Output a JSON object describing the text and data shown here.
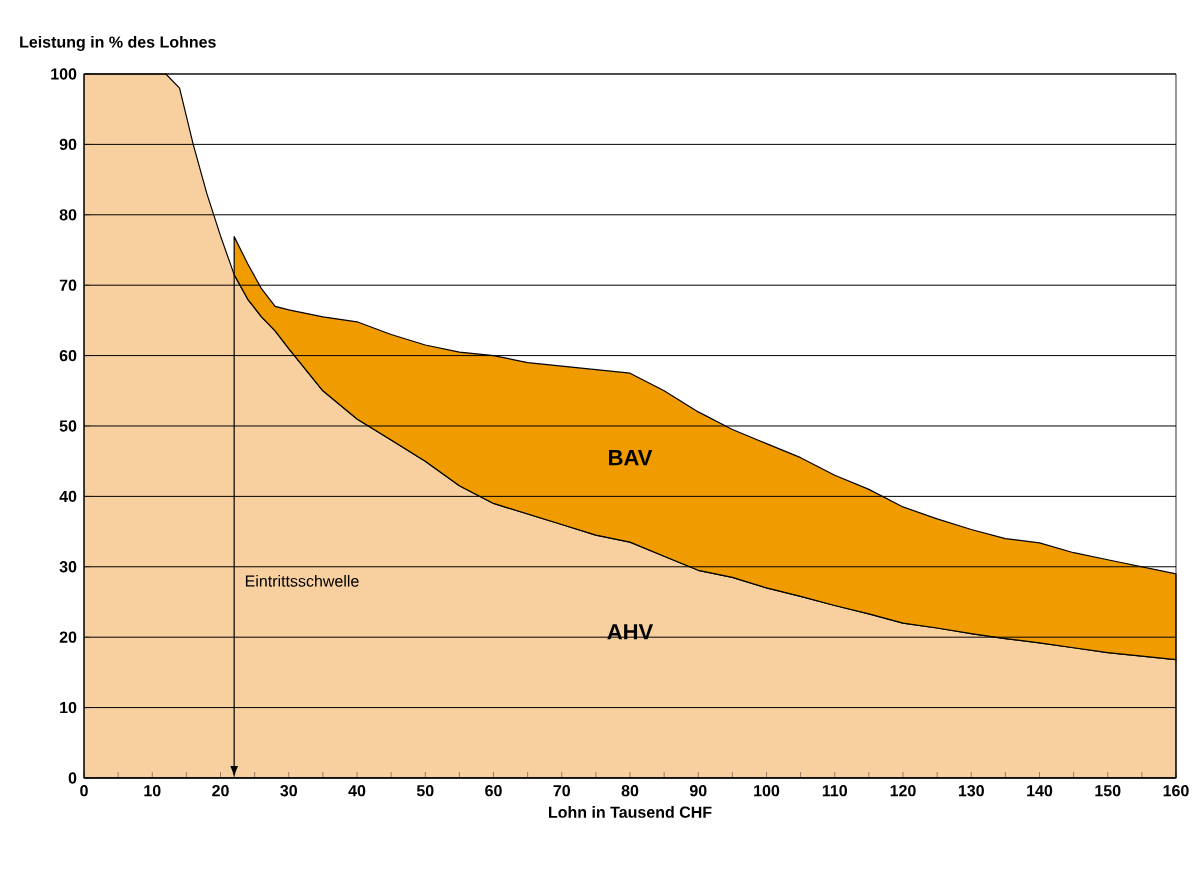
{
  "chart_data": {
    "type": "area",
    "stacked": true,
    "ylabel": "Leistung in % des Lohnes",
    "xlabel": "Lohn in Tausend CHF",
    "x": [
      0,
      10,
      12,
      14,
      16,
      18,
      20,
      22,
      24,
      26,
      28,
      30,
      35,
      40,
      45,
      50,
      55,
      60,
      65,
      70,
      75,
      80,
      85,
      90,
      95,
      100,
      105,
      110,
      115,
      120,
      125,
      130,
      135,
      140,
      145,
      150,
      155,
      160
    ],
    "series": [
      {
        "name": "AHV",
        "color": "#f8d0a0",
        "values": [
          100,
          100,
          100,
          98,
          90,
          83,
          77,
          71.5,
          68,
          65.5,
          63.5,
          61,
          55,
          51,
          48,
          45,
          41.5,
          39,
          37.5,
          36,
          34.5,
          33.5,
          31.5,
          29.5,
          28.5,
          27,
          25.8,
          24.5,
          23.3,
          22,
          21.3,
          20.5,
          19.8,
          19.2,
          18.5,
          17.8,
          17.3,
          16.8
        ]
      },
      {
        "name": "BAV",
        "color": "#f09c00",
        "values": [
          null,
          null,
          null,
          null,
          null,
          null,
          null,
          5.4,
          5,
          4,
          3.5,
          5.5,
          10.5,
          13.8,
          15,
          16.5,
          19,
          21,
          21.5,
          22.5,
          23.5,
          24,
          23.5,
          22.5,
          21,
          20.5,
          19.7,
          18.5,
          17.7,
          16.5,
          15.5,
          14.8,
          14.2,
          14.2,
          13.5,
          13.2,
          12.7,
          12.2
        ]
      }
    ],
    "xlim": [
      0,
      160
    ],
    "ylim": [
      0,
      100
    ],
    "xticks": [
      0,
      {
        "value": 5,
        "label": null
      },
      10,
      {
        "value": 15,
        "label": null
      },
      20,
      {
        "value": 25,
        "label": null
      },
      30,
      {
        "value": 35,
        "label": null
      },
      40,
      {
        "value": 45,
        "label": null
      },
      50,
      {
        "value": 55,
        "label": null
      },
      60,
      {
        "value": 65,
        "label": null
      },
      70,
      {
        "value": 75,
        "label": null
      },
      80,
      {
        "value": 85,
        "label": null
      },
      90,
      {
        "value": 95,
        "label": null
      },
      100,
      {
        "value": 105,
        "label": null
      },
      110,
      {
        "value": 115,
        "label": null
      },
      120,
      {
        "value": 125,
        "label": null
      },
      130,
      {
        "value": 135,
        "label": null
      },
      140,
      {
        "value": 145,
        "label": null
      },
      150,
      {
        "value": 155,
        "label": null
      },
      160
    ],
    "yticks": [
      0,
      10,
      20,
      30,
      40,
      50,
      60,
      70,
      80,
      90,
      100
    ],
    "grid": "y",
    "ref_lines": [
      {
        "axis": "x",
        "value": 22,
        "label": "Eintrittsschwelle"
      }
    ]
  }
}
